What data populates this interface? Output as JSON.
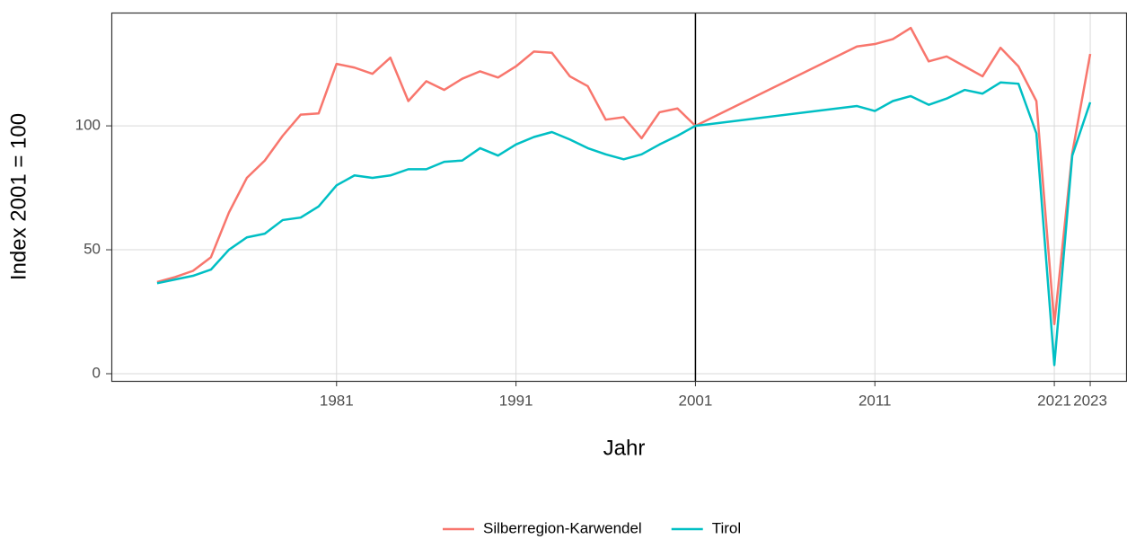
{
  "chart_data": {
    "type": "line",
    "xlabel": "Jahr",
    "ylabel": "Index 2001 = 100",
    "x": [
      1971,
      1972,
      1973,
      1974,
      1975,
      1976,
      1977,
      1978,
      1979,
      1980,
      1981,
      1982,
      1983,
      1984,
      1985,
      1986,
      1987,
      1988,
      1989,
      1990,
      1991,
      1992,
      1993,
      1994,
      1995,
      1996,
      1997,
      1998,
      1999,
      2000,
      2001,
      2010,
      2011,
      2012,
      2013,
      2014,
      2015,
      2016,
      2017,
      2018,
      2019,
      2020,
      2021,
      2022,
      2023
    ],
    "series": [
      {
        "name": "Silberregion-Karwendel",
        "color": "#f8766d",
        "values": [
          37,
          39,
          41.5,
          47,
          65,
          79,
          86,
          96,
          104.5,
          105,
          125,
          123.5,
          121,
          127.5,
          110,
          118,
          114.5,
          119,
          122,
          119.5,
          124,
          130,
          129.5,
          120,
          116,
          102.5,
          103.5,
          95,
          105.5,
          107,
          100,
          132,
          133,
          135,
          139.5,
          126,
          128,
          124,
          120,
          131.5,
          124,
          110,
          20,
          89,
          129
        ]
      },
      {
        "name": "Tirol",
        "color": "#00bfc4",
        "values": [
          36.5,
          38,
          39.5,
          42,
          50,
          55,
          56.5,
          62,
          63,
          67.5,
          76,
          80,
          79,
          80,
          82.5,
          82.5,
          85.5,
          86,
          91,
          88,
          92.5,
          95.5,
          97.5,
          94.5,
          91,
          88.5,
          86.5,
          88.5,
          92.5,
          96,
          100,
          108,
          106,
          110,
          112,
          108.5,
          111,
          114.5,
          113,
          117.5,
          117,
          97,
          3.5,
          88,
          109.5
        ]
      }
    ],
    "xlim": [
      1968.45,
      2025.05
    ],
    "xticks": [
      1981,
      1991,
      2001,
      2011,
      2021,
      2023
    ],
    "ylim": [
      -2.9,
      145.7
    ],
    "yticks": [
      0,
      50,
      100
    ],
    "vline": 2001,
    "grid": true,
    "legend": "bottom"
  }
}
